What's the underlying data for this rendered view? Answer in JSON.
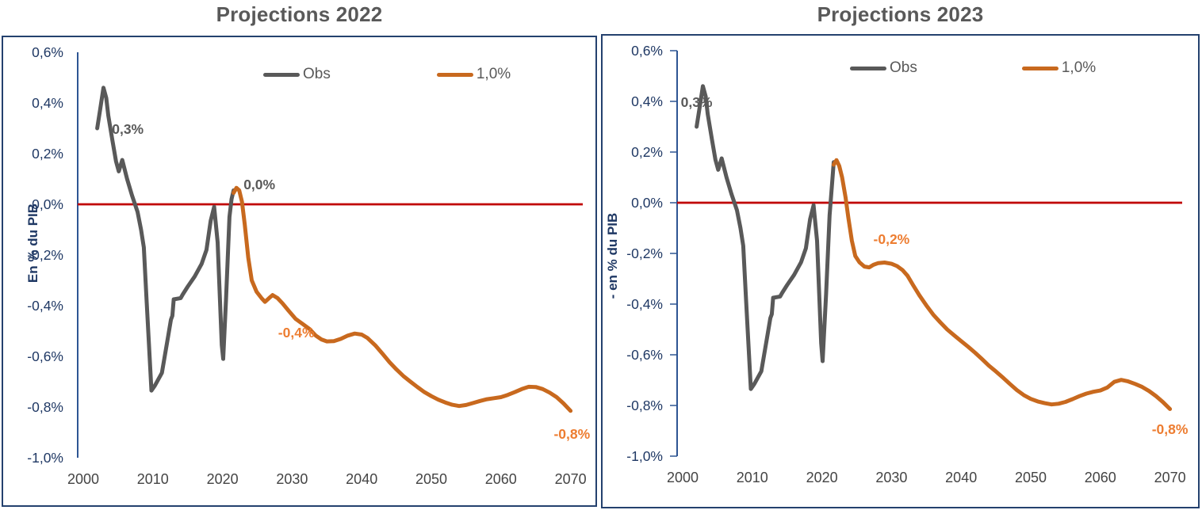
{
  "figure": {
    "description": "Two side-by-side line charts comparing pension balance projections"
  },
  "colors": {
    "title": "#595959",
    "obs_line": "#595959",
    "scenario_line": "#C8691E",
    "zero_line": "#C00000",
    "axis_line": "#2E5593",
    "panel_border": "#24416E",
    "y_tick_label": "#1F3864",
    "x_tick_label": "#444444",
    "annotation_gray": "#595959",
    "annotation_orange": "#ED7D31"
  },
  "chart_data": [
    {
      "type": "line",
      "title": "Projections 2022",
      "ylabel": "En % du PIB",
      "xlabel": "",
      "xlim": [
        1999,
        2072
      ],
      "ylim": [
        -1.0,
        0.6
      ],
      "grid": false,
      "legend_position": "top-center",
      "y_tick_marks": false,
      "y_ticks": [
        {
          "value": 0.6,
          "label": "0,6%"
        },
        {
          "value": 0.4,
          "label": "0,4%"
        },
        {
          "value": 0.2,
          "label": "0,2%"
        },
        {
          "value": 0.0,
          "label": "0,0%"
        },
        {
          "value": -0.2,
          "label": "-0,2%"
        },
        {
          "value": -0.4,
          "label": "-0,4%"
        },
        {
          "value": -0.6,
          "label": "-0,6%"
        },
        {
          "value": -0.8,
          "label": "-0,8%"
        },
        {
          "value": -1.0,
          "label": "-1,0%"
        }
      ],
      "x_ticks": [
        {
          "value": 2000,
          "label": "2000"
        },
        {
          "value": 2010,
          "label": "2010"
        },
        {
          "value": 2020,
          "label": "2020"
        },
        {
          "value": 2030,
          "label": "2030"
        },
        {
          "value": 2040,
          "label": "2040"
        },
        {
          "value": 2050,
          "label": "2050"
        },
        {
          "value": 2060,
          "label": "2060"
        },
        {
          "value": 2070,
          "label": "2070"
        }
      ],
      "zero_line": {
        "value": 0.0,
        "color": "#C00000"
      },
      "legend": [
        {
          "name": "Obs",
          "color": "#595959"
        },
        {
          "name": "1,0%",
          "color": "#C8691E"
        }
      ],
      "series": [
        {
          "name": "Obs",
          "color": "#595959",
          "points": [
            [
              2002.0,
              0.3
            ],
            [
              2002.4,
              0.37
            ],
            [
              2002.9,
              0.46
            ],
            [
              2003.3,
              0.42
            ],
            [
              2003.6,
              0.35
            ],
            [
              2004.2,
              0.25
            ],
            [
              2004.7,
              0.17
            ],
            [
              2005.1,
              0.13
            ],
            [
              2005.6,
              0.175
            ],
            [
              2006.3,
              0.1
            ],
            [
              2007.0,
              0.035
            ],
            [
              2007.8,
              -0.03
            ],
            [
              2008.3,
              -0.1
            ],
            [
              2008.7,
              -0.17
            ],
            [
              2009.1,
              -0.38
            ],
            [
              2009.8,
              -0.735
            ],
            [
              2010.3,
              -0.715
            ],
            [
              2011.3,
              -0.665
            ],
            [
              2012.2,
              -0.52
            ],
            [
              2012.6,
              -0.455
            ],
            [
              2012.8,
              -0.44
            ],
            [
              2013.0,
              -0.375
            ],
            [
              2014.0,
              -0.37
            ],
            [
              2014.3,
              -0.355
            ],
            [
              2015.0,
              -0.325
            ],
            [
              2016.0,
              -0.285
            ],
            [
              2017.0,
              -0.235
            ],
            [
              2017.7,
              -0.18
            ],
            [
              2018.3,
              -0.065
            ],
            [
              2018.8,
              -0.01
            ],
            [
              2019.3,
              -0.15
            ],
            [
              2019.9,
              -0.555
            ],
            [
              2020.1,
              -0.61
            ],
            [
              2020.5,
              -0.38
            ],
            [
              2021.0,
              -0.05
            ],
            [
              2021.3,
              0.02
            ],
            [
              2021.6,
              0.055
            ]
          ]
        },
        {
          "name": "1,0%",
          "color": "#C8691E",
          "points": [
            [
              2021.6,
              0.045
            ],
            [
              2022.0,
              0.065
            ],
            [
              2022.4,
              0.055
            ],
            [
              2022.8,
              0.01
            ],
            [
              2023.2,
              -0.08
            ],
            [
              2023.7,
              -0.21
            ],
            [
              2024.2,
              -0.3
            ],
            [
              2024.9,
              -0.345
            ],
            [
              2025.6,
              -0.37
            ],
            [
              2026.1,
              -0.385
            ],
            [
              2026.7,
              -0.37
            ],
            [
              2027.2,
              -0.358
            ],
            [
              2027.9,
              -0.37
            ],
            [
              2028.6,
              -0.39
            ],
            [
              2029.5,
              -0.42
            ],
            [
              2030.5,
              -0.452
            ],
            [
              2031.5,
              -0.472
            ],
            [
              2032.5,
              -0.492
            ],
            [
              2033.4,
              -0.518
            ],
            [
              2034.2,
              -0.533
            ],
            [
              2035.0,
              -0.541
            ],
            [
              2036.0,
              -0.54
            ],
            [
              2037.0,
              -0.531
            ],
            [
              2038.0,
              -0.518
            ],
            [
              2039.0,
              -0.51
            ],
            [
              2040.0,
              -0.514
            ],
            [
              2040.8,
              -0.527
            ],
            [
              2042.0,
              -0.558
            ],
            [
              2043.0,
              -0.59
            ],
            [
              2044.0,
              -0.623
            ],
            [
              2045.0,
              -0.652
            ],
            [
              2046.0,
              -0.678
            ],
            [
              2047.0,
              -0.7
            ],
            [
              2048.0,
              -0.721
            ],
            [
              2049.0,
              -0.741
            ],
            [
              2050.0,
              -0.757
            ],
            [
              2051.0,
              -0.771
            ],
            [
              2052.0,
              -0.782
            ],
            [
              2053.0,
              -0.791
            ],
            [
              2054.0,
              -0.796
            ],
            [
              2055.0,
              -0.792
            ],
            [
              2056.0,
              -0.784
            ],
            [
              2057.0,
              -0.776
            ],
            [
              2058.0,
              -0.769
            ],
            [
              2059.0,
              -0.765
            ],
            [
              2060.0,
              -0.761
            ],
            [
              2061.0,
              -0.752
            ],
            [
              2062.0,
              -0.741
            ],
            [
              2063.0,
              -0.729
            ],
            [
              2064.0,
              -0.72
            ],
            [
              2065.0,
              -0.721
            ],
            [
              2066.0,
              -0.729
            ],
            [
              2067.0,
              -0.743
            ],
            [
              2068.0,
              -0.761
            ],
            [
              2069.0,
              -0.786
            ],
            [
              2070.0,
              -0.815
            ]
          ]
        }
      ],
      "annotations": [
        {
          "text": "0,3%",
          "x": 2006.4,
          "y": 0.297,
          "color": "#595959"
        },
        {
          "text": "0,0%",
          "x": 2025.3,
          "y": 0.078,
          "color": "#595959"
        },
        {
          "text": "-0,4%",
          "x": 2030.6,
          "y": -0.506,
          "color": "#ED7D31"
        },
        {
          "text": "-0,8%",
          "x": 2070.2,
          "y": -0.906,
          "color": "#ED7D31"
        }
      ]
    },
    {
      "type": "line",
      "title": "Projections 2023",
      "ylabel": "- en % du PIB",
      "xlabel": "",
      "xlim": [
        1999,
        2072
      ],
      "ylim": [
        -1.0,
        0.6
      ],
      "grid": false,
      "legend_position": "top-center",
      "y_tick_marks": true,
      "y_ticks": [
        {
          "value": 0.6,
          "label": "0,6%"
        },
        {
          "value": 0.4,
          "label": "0,4%"
        },
        {
          "value": 0.2,
          "label": "0,2%"
        },
        {
          "value": 0.0,
          "label": "0,0%"
        },
        {
          "value": -0.2,
          "label": "-0,2%"
        },
        {
          "value": -0.4,
          "label": "-0,4%"
        },
        {
          "value": -0.6,
          "label": "-0,6%"
        },
        {
          "value": -0.8,
          "label": "-0,8%"
        },
        {
          "value": -1.0,
          "label": "-1,0%"
        }
      ],
      "x_ticks": [
        {
          "value": 2000,
          "label": "2000"
        },
        {
          "value": 2010,
          "label": "2010"
        },
        {
          "value": 2020,
          "label": "2020"
        },
        {
          "value": 2030,
          "label": "2030"
        },
        {
          "value": 2040,
          "label": "2040"
        },
        {
          "value": 2050,
          "label": "2050"
        },
        {
          "value": 2060,
          "label": "2060"
        },
        {
          "value": 2070,
          "label": "2070"
        }
      ],
      "zero_line": {
        "value": 0.0,
        "color": "#C00000"
      },
      "legend": [
        {
          "name": "Obs",
          "color": "#595959"
        },
        {
          "name": "1,0%",
          "color": "#C8691E"
        }
      ],
      "series": [
        {
          "name": "Obs",
          "color": "#595959",
          "points": [
            [
              2002.0,
              0.3
            ],
            [
              2002.4,
              0.37
            ],
            [
              2002.9,
              0.46
            ],
            [
              2003.3,
              0.42
            ],
            [
              2003.6,
              0.35
            ],
            [
              2004.2,
              0.25
            ],
            [
              2004.7,
              0.17
            ],
            [
              2005.1,
              0.13
            ],
            [
              2005.6,
              0.175
            ],
            [
              2006.3,
              0.1
            ],
            [
              2007.0,
              0.035
            ],
            [
              2007.8,
              -0.03
            ],
            [
              2008.3,
              -0.1
            ],
            [
              2008.7,
              -0.17
            ],
            [
              2009.1,
              -0.38
            ],
            [
              2009.8,
              -0.735
            ],
            [
              2010.3,
              -0.715
            ],
            [
              2011.3,
              -0.665
            ],
            [
              2012.2,
              -0.52
            ],
            [
              2012.6,
              -0.455
            ],
            [
              2012.8,
              -0.44
            ],
            [
              2013.0,
              -0.375
            ],
            [
              2014.0,
              -0.37
            ],
            [
              2014.3,
              -0.355
            ],
            [
              2015.0,
              -0.325
            ],
            [
              2016.0,
              -0.285
            ],
            [
              2017.0,
              -0.235
            ],
            [
              2017.7,
              -0.18
            ],
            [
              2018.3,
              -0.065
            ],
            [
              2018.8,
              -0.01
            ],
            [
              2019.3,
              -0.15
            ],
            [
              2019.9,
              -0.555
            ],
            [
              2020.1,
              -0.625
            ],
            [
              2020.6,
              -0.36
            ],
            [
              2021.1,
              -0.05
            ],
            [
              2021.5,
              0.09
            ],
            [
              2021.7,
              0.16
            ]
          ]
        },
        {
          "name": "1,0%",
          "color": "#C8691E",
          "points": [
            [
              2021.7,
              0.15
            ],
            [
              2022.1,
              0.168
            ],
            [
              2022.5,
              0.145
            ],
            [
              2022.9,
              0.1
            ],
            [
              2023.4,
              0.02
            ],
            [
              2023.8,
              -0.06
            ],
            [
              2024.3,
              -0.15
            ],
            [
              2024.8,
              -0.21
            ],
            [
              2025.4,
              -0.235
            ],
            [
              2026.1,
              -0.252
            ],
            [
              2026.8,
              -0.255
            ],
            [
              2027.4,
              -0.245
            ],
            [
              2028.1,
              -0.238
            ],
            [
              2029.0,
              -0.236
            ],
            [
              2030.0,
              -0.241
            ],
            [
              2030.8,
              -0.25
            ],
            [
              2031.6,
              -0.266
            ],
            [
              2032.3,
              -0.288
            ],
            [
              2033.1,
              -0.325
            ],
            [
              2034.0,
              -0.365
            ],
            [
              2035.0,
              -0.405
            ],
            [
              2036.0,
              -0.442
            ],
            [
              2037.0,
              -0.472
            ],
            [
              2038.0,
              -0.5
            ],
            [
              2039.0,
              -0.523
            ],
            [
              2040.0,
              -0.546
            ],
            [
              2041.0,
              -0.568
            ],
            [
              2042.0,
              -0.592
            ],
            [
              2043.0,
              -0.617
            ],
            [
              2044.0,
              -0.643
            ],
            [
              2045.0,
              -0.666
            ],
            [
              2046.0,
              -0.69
            ],
            [
              2047.0,
              -0.715
            ],
            [
              2048.0,
              -0.739
            ],
            [
              2049.0,
              -0.759
            ],
            [
              2050.0,
              -0.774
            ],
            [
              2051.0,
              -0.784
            ],
            [
              2052.0,
              -0.791
            ],
            [
              2053.0,
              -0.796
            ],
            [
              2054.0,
              -0.793
            ],
            [
              2055.0,
              -0.786
            ],
            [
              2056.0,
              -0.775
            ],
            [
              2057.0,
              -0.763
            ],
            [
              2058.0,
              -0.753
            ],
            [
              2059.0,
              -0.746
            ],
            [
              2060.0,
              -0.741
            ],
            [
              2061.0,
              -0.729
            ],
            [
              2062.0,
              -0.707
            ],
            [
              2063.0,
              -0.699
            ],
            [
              2064.0,
              -0.705
            ],
            [
              2065.0,
              -0.715
            ],
            [
              2066.0,
              -0.727
            ],
            [
              2067.0,
              -0.743
            ],
            [
              2068.0,
              -0.763
            ],
            [
              2069.0,
              -0.787
            ],
            [
              2070.0,
              -0.814
            ]
          ]
        }
      ],
      "annotations": [
        {
          "text": "0,3%",
          "x": 2002.0,
          "y": 0.397,
          "color": "#595959"
        },
        {
          "text": "-0,2%",
          "x": 2030.0,
          "y": -0.144,
          "color": "#ED7D31"
        },
        {
          "text": "-0,8%",
          "x": 2070.0,
          "y": -0.894,
          "color": "#ED7D31"
        }
      ]
    }
  ]
}
